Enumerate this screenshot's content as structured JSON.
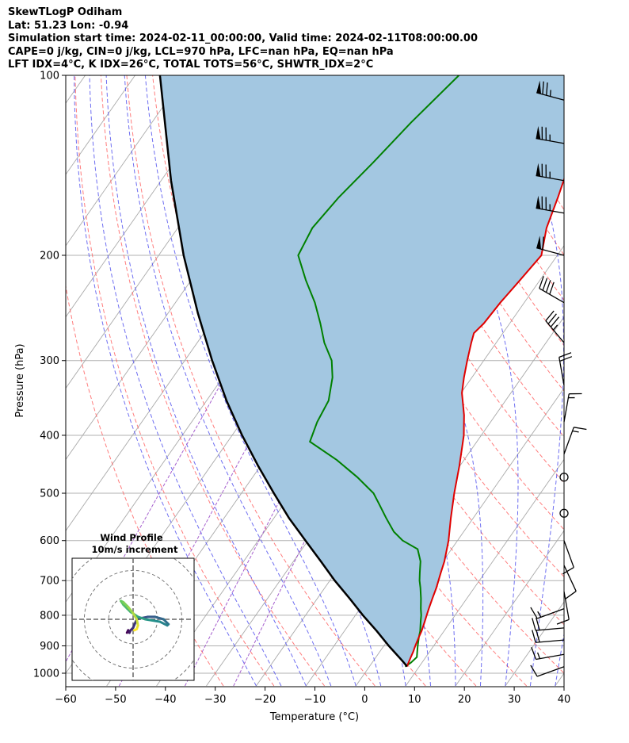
{
  "header": {
    "line1": "SkewTLogP Odiham",
    "line2": "Lat: 51.23   Lon: -0.94",
    "line3": "Simulation start time: 2024-02-11_00:00:00, Valid time: 2024-02-11T08:00:00.00",
    "line4": "CAPE=0 j/kg, CIN=0 j/kg, LCL=970 hPa, LFC=nan hPa, EQ=nan hPa",
    "line5": "LFT IDX=4°C, K IDX=26°C, TOTAL TOTS=56°C, SHWTR_IDX=2°C"
  },
  "chart_data": {
    "type": "line",
    "subtype": "skew-T log-P diagram",
    "xlabel": "Temperature (°C)",
    "ylabel": "Pressure (hPa)",
    "xlim": [
      -60,
      40
    ],
    "ylim_pressure": [
      1050,
      100
    ],
    "y_scale": "log",
    "x_ticks": [
      -60,
      -50,
      -40,
      -30,
      -20,
      -10,
      0,
      10,
      20,
      30,
      40
    ],
    "x_tick_labels": [
      "−60",
      "−50",
      "−40",
      "−30",
      "−20",
      "−10",
      "0",
      "10",
      "20",
      "30",
      "40"
    ],
    "y_ticks": [
      1000,
      900,
      800,
      700,
      600,
      500,
      400,
      300,
      200,
      100
    ],
    "y_tick_labels": [
      "1000",
      "900",
      "800",
      "700",
      "600",
      "500",
      "400",
      "300",
      "200",
      "100"
    ],
    "grid": true,
    "colors": {
      "temperature": "#e00000",
      "dewpoint": "#008000",
      "parcel": "#000000",
      "cape_fill": "#a3c7e1",
      "dry_adiabats": "#ff6666",
      "moist_adiabats": "#5555ee",
      "mixing_ratio": "#9c4fc9",
      "isotherms": "#aaaaaa"
    },
    "series": [
      {
        "key": "temperature",
        "p": [
          975,
          960,
          940,
          920,
          900,
          870,
          850,
          820,
          800,
          780,
          750,
          720,
          700,
          680,
          650,
          600,
          550,
          500,
          450,
          400,
          370,
          340,
          320,
          300,
          280,
          270,
          260,
          240,
          220,
          200,
          180,
          160,
          140,
          120,
          100
        ],
        "t": [
          7.5,
          7.3,
          7.0,
          6.7,
          6.3,
          5.8,
          5.5,
          4.8,
          4.3,
          3.8,
          3.1,
          2.4,
          1.8,
          1.2,
          0.3,
          -1.8,
          -4.5,
          -7.3,
          -10.1,
          -13.5,
          -16.3,
          -19.8,
          -21.6,
          -23.3,
          -25.0,
          -25.8,
          -25.2,
          -24.8,
          -24.0,
          -23.2,
          -26.0,
          -28.0,
          -30.5,
          -33.5,
          -38.0
        ]
      },
      {
        "key": "dewpoint",
        "p": [
          975,
          960,
          940,
          920,
          900,
          870,
          850,
          820,
          800,
          780,
          750,
          720,
          700,
          680,
          650,
          620,
          600,
          580,
          550,
          520,
          500,
          470,
          440,
          410,
          380,
          350,
          320,
          300,
          280,
          260,
          240,
          220,
          200,
          180,
          160,
          140,
          120,
          100
        ],
        "t": [
          7.2,
          7.8,
          8.2,
          7.5,
          6.8,
          5.8,
          5.2,
          4.0,
          3.2,
          2.2,
          0.8,
          -0.8,
          -2.0,
          -3.0,
          -4.5,
          -6.8,
          -11.0,
          -14.0,
          -17.5,
          -21.0,
          -23.5,
          -29.0,
          -35.5,
          -43.5,
          -44.8,
          -45.5,
          -48.0,
          -50.5,
          -54.5,
          -58.0,
          -62.0,
          -67.0,
          -72.0,
          -73.0,
          -72.0,
          -70.0,
          -68.0,
          -65.0
        ]
      },
      {
        "key": "parcel",
        "p": [
          975,
          970,
          950,
          900,
          850,
          800,
          750,
          700,
          650,
          600,
          550,
          500,
          450,
          400,
          350,
          300,
          250,
          200,
          150,
          100
        ],
        "t": [
          7.5,
          7.2,
          5.5,
          1.0,
          -3.5,
          -8.5,
          -13.5,
          -19.0,
          -24.5,
          -30.5,
          -37.0,
          -43.5,
          -50.5,
          -58.0,
          -66.0,
          -74.5,
          -84.0,
          -95.0,
          -108.0,
          -125.0
        ]
      }
    ],
    "wind_barbs": [
      {
        "p": 110,
        "speed_kt": 75,
        "dir_deg": 285
      },
      {
        "p": 130,
        "speed_kt": 75,
        "dir_deg": 280
      },
      {
        "p": 150,
        "speed_kt": 75,
        "dir_deg": 280
      },
      {
        "p": 170,
        "speed_kt": 75,
        "dir_deg": 280
      },
      {
        "p": 200,
        "speed_kt": 60,
        "dir_deg": 285
      },
      {
        "p": 240,
        "speed_kt": 40,
        "dir_deg": 300
      },
      {
        "p": 280,
        "speed_kt": 35,
        "dir_deg": 320
      },
      {
        "p": 330,
        "speed_kt": 20,
        "dir_deg": 350
      },
      {
        "p": 380,
        "speed_kt": 15,
        "dir_deg": 10
      },
      {
        "p": 430,
        "speed_kt": 15,
        "dir_deg": 20
      },
      {
        "p": 470,
        "speed_kt": 0,
        "dir_deg": 0
      },
      {
        "p": 540,
        "speed_kt": 0,
        "dir_deg": 0
      },
      {
        "p": 600,
        "speed_kt": 10,
        "dir_deg": 160
      },
      {
        "p": 660,
        "speed_kt": 10,
        "dir_deg": 155
      },
      {
        "p": 730,
        "speed_kt": 10,
        "dir_deg": 170
      },
      {
        "p": 780,
        "speed_kt": 15,
        "dir_deg": 250
      },
      {
        "p": 840,
        "speed_kt": 20,
        "dir_deg": 265
      },
      {
        "p": 880,
        "speed_kt": 20,
        "dir_deg": 265
      },
      {
        "p": 930,
        "speed_kt": 15,
        "dir_deg": 260
      },
      {
        "p": 975,
        "speed_kt": 10,
        "dir_deg": 250
      }
    ],
    "hodograph": {
      "title_line1": "Wind Profile",
      "title_line2": "10m/s increment",
      "rings_ms": [
        10,
        20,
        30
      ],
      "range_ms": [
        -25,
        25
      ],
      "u": [
        -2.5,
        -2.0,
        -1.5,
        -1.0,
        0.0,
        1.5,
        3.5,
        6.0,
        9.0,
        12.5,
        14.5,
        14.0,
        11.0,
        8.0,
        5.0,
        2.0,
        -1.0,
        -2.5,
        -4.0,
        -5.0,
        -4.0,
        -2.0,
        0.0,
        1.5,
        2.0,
        1.5,
        0.5
      ],
      "v": [
        -5.5,
        -4.5,
        -5.5,
        -4.5,
        -3.5,
        0.0,
        0.5,
        1.0,
        1.0,
        0.0,
        -2.0,
        -2.5,
        -1.0,
        -0.5,
        0.0,
        1.0,
        3.0,
        4.5,
        6.0,
        7.5,
        7.0,
        5.0,
        2.5,
        0.0,
        -2.5,
        -4.0,
        -4.5
      ]
    }
  }
}
